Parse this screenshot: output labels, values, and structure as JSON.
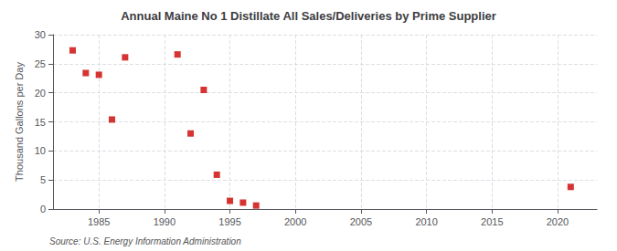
{
  "chart_data": {
    "type": "scatter",
    "title": "Annual Maine No 1 Distillate All Sales/Deliveries by Prime Supplier",
    "ylabel": "Thousand Gallons per Day",
    "annotation": "Source: U.S. Energy Information Administration",
    "x": [
      1983,
      1984,
      1985,
      1986,
      1987,
      1991,
      1992,
      1993,
      1994,
      1995,
      1996,
      1997,
      2021
    ],
    "values": [
      27.3,
      23.4,
      23.1,
      15.4,
      26.1,
      26.6,
      13.0,
      20.5,
      5.9,
      1.4,
      1.1,
      0.6,
      3.8
    ],
    "color": "#cc0000",
    "marker": "square",
    "xlim": [
      1981.5,
      2023
    ],
    "ylim": [
      0,
      30
    ],
    "xticks": [
      1985,
      1990,
      1995,
      2000,
      2005,
      2010,
      2015,
      2020
    ],
    "yticks": [
      0,
      5,
      10,
      15,
      20,
      25,
      30
    ],
    "grid": true
  }
}
